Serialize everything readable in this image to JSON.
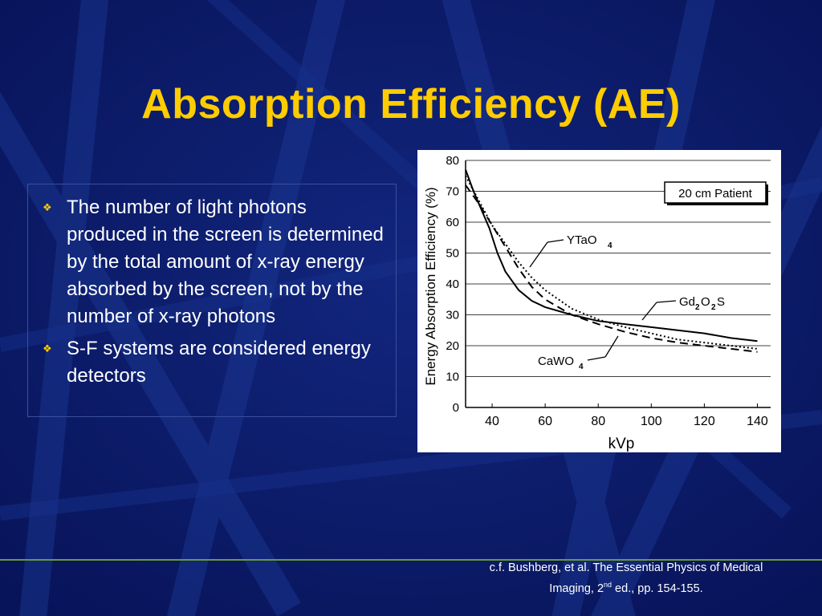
{
  "slide": {
    "title": "Absorption Efficiency (AE)",
    "bullets": [
      "The number of light photons produced in the screen is determined by the total amount of x-ray energy absorbed by the screen, not by the number of x-ray photons",
      "S-F systems are considered energy detectors"
    ],
    "citation": {
      "line1": "c.f. Bushberg, et al. The Essential Physics of Medical",
      "line2_prefix": "Imaging, 2",
      "line2_sup": "nd",
      "line2_suffix": " ed., pp. 154-155."
    }
  },
  "colors": {
    "background": "#0a1a6e",
    "title": "#ffcc00",
    "text": "#ffffff"
  },
  "chart_data": {
    "type": "line",
    "title": "",
    "xlabel": "kVp",
    "ylabel": "Energy Absorption Efficiency (%)",
    "xlim": [
      30,
      145
    ],
    "ylim": [
      0,
      80
    ],
    "x_ticks": [
      40,
      60,
      80,
      100,
      120,
      140
    ],
    "y_ticks": [
      0,
      10,
      20,
      30,
      40,
      50,
      60,
      70,
      80
    ],
    "grid": "horizontal",
    "annotation": "20 cm Patient",
    "series": [
      {
        "name": "Gd2O2S",
        "style": "solid",
        "points": [
          [
            30,
            77
          ],
          [
            33,
            70
          ],
          [
            36,
            64
          ],
          [
            39,
            58
          ],
          [
            42,
            50
          ],
          [
            45,
            44
          ],
          [
            50,
            38
          ],
          [
            55,
            34.5
          ],
          [
            60,
            32.5
          ],
          [
            70,
            30
          ],
          [
            80,
            28
          ],
          [
            90,
            27
          ],
          [
            100,
            26
          ],
          [
            110,
            25
          ],
          [
            120,
            24
          ],
          [
            130,
            22.5
          ],
          [
            140,
            21.5
          ]
        ]
      },
      {
        "name": "YTaO4",
        "style": "dotted",
        "points": [
          [
            30,
            75
          ],
          [
            35,
            67
          ],
          [
            40,
            59
          ],
          [
            45,
            53
          ],
          [
            50,
            47
          ],
          [
            55,
            42
          ],
          [
            60,
            38
          ],
          [
            70,
            32
          ],
          [
            80,
            28.5
          ],
          [
            90,
            26
          ],
          [
            100,
            24
          ],
          [
            110,
            22
          ],
          [
            120,
            21
          ],
          [
            130,
            20
          ],
          [
            140,
            19
          ]
        ]
      },
      {
        "name": "CaWO4",
        "style": "dashed",
        "points": [
          [
            30,
            72
          ],
          [
            35,
            66
          ],
          [
            40,
            59
          ],
          [
            45,
            52
          ],
          [
            50,
            45
          ],
          [
            55,
            39
          ],
          [
            60,
            35
          ],
          [
            70,
            30
          ],
          [
            80,
            27
          ],
          [
            90,
            24.5
          ],
          [
            100,
            22.5
          ],
          [
            110,
            21
          ],
          [
            120,
            20
          ],
          [
            130,
            19
          ],
          [
            140,
            18
          ]
        ]
      }
    ],
    "labels": [
      {
        "series": "YTaO4",
        "base": "YTaO",
        "sub": "4"
      },
      {
        "series": "Gd2O2S",
        "parts": [
          "Gd",
          "2",
          "O",
          "2",
          "S"
        ]
      },
      {
        "series": "CaWO4",
        "base": "CaWO",
        "sub": "4"
      }
    ]
  }
}
